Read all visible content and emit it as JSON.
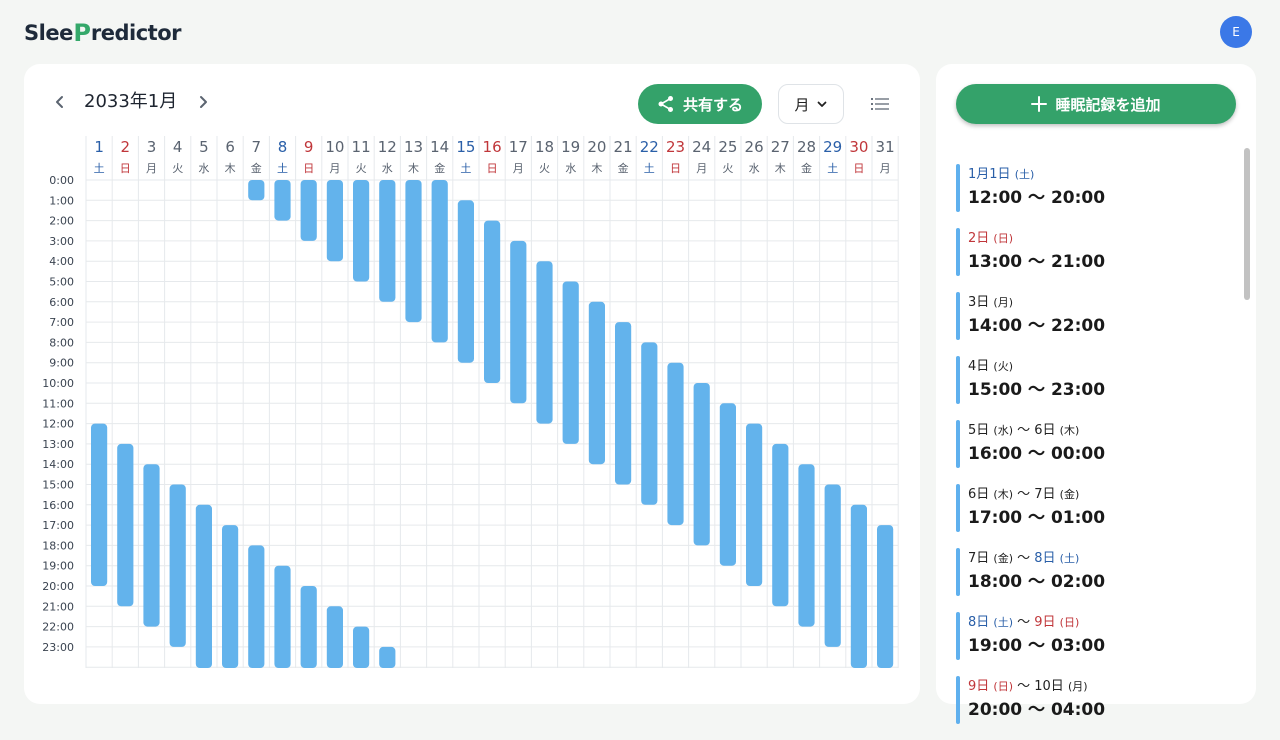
{
  "app": {
    "logo_before": "Slee",
    "logo_p": "P",
    "logo_after": "redictor",
    "avatar_letter": "E"
  },
  "calendar": {
    "month_title": "2033年1月",
    "share_label": "共有する",
    "period_value": "月",
    "icons": {
      "prev": "chevron-left-icon",
      "next": "chevron-right-icon",
      "share": "share-icon",
      "dropdown": "chevron-down-icon",
      "list": "list-icon"
    }
  },
  "colors": {
    "accent": "#34a26a",
    "bar": "#63b3ec",
    "saturday": "#2a5fa8",
    "sunday": "#c0363a",
    "weekday": "#5a6370",
    "grid": "#e6e9ec"
  },
  "chart_data": {
    "type": "bar",
    "days": [
      {
        "day": "1",
        "weekday": "土",
        "kind": "sat"
      },
      {
        "day": "2",
        "weekday": "日",
        "kind": "sun"
      },
      {
        "day": "3",
        "weekday": "月",
        "kind": "wd"
      },
      {
        "day": "4",
        "weekday": "火",
        "kind": "wd"
      },
      {
        "day": "5",
        "weekday": "水",
        "kind": "wd"
      },
      {
        "day": "6",
        "weekday": "木",
        "kind": "wd"
      },
      {
        "day": "7",
        "weekday": "金",
        "kind": "wd"
      },
      {
        "day": "8",
        "weekday": "土",
        "kind": "sat"
      },
      {
        "day": "9",
        "weekday": "日",
        "kind": "sun"
      },
      {
        "day": "10",
        "weekday": "月",
        "kind": "wd"
      },
      {
        "day": "11",
        "weekday": "火",
        "kind": "wd"
      },
      {
        "day": "12",
        "weekday": "水",
        "kind": "wd"
      },
      {
        "day": "13",
        "weekday": "木",
        "kind": "wd"
      },
      {
        "day": "14",
        "weekday": "金",
        "kind": "wd"
      },
      {
        "day": "15",
        "weekday": "土",
        "kind": "sat"
      },
      {
        "day": "16",
        "weekday": "日",
        "kind": "sun"
      },
      {
        "day": "17",
        "weekday": "月",
        "kind": "wd"
      },
      {
        "day": "18",
        "weekday": "火",
        "kind": "wd"
      },
      {
        "day": "19",
        "weekday": "水",
        "kind": "wd"
      },
      {
        "day": "20",
        "weekday": "木",
        "kind": "wd"
      },
      {
        "day": "21",
        "weekday": "金",
        "kind": "wd"
      },
      {
        "day": "22",
        "weekday": "土",
        "kind": "sat"
      },
      {
        "day": "23",
        "weekday": "日",
        "kind": "sun"
      },
      {
        "day": "24",
        "weekday": "月",
        "kind": "wd"
      },
      {
        "day": "25",
        "weekday": "火",
        "kind": "wd"
      },
      {
        "day": "26",
        "weekday": "水",
        "kind": "wd"
      },
      {
        "day": "27",
        "weekday": "木",
        "kind": "wd"
      },
      {
        "day": "28",
        "weekday": "金",
        "kind": "wd"
      },
      {
        "day": "29",
        "weekday": "土",
        "kind": "sat"
      },
      {
        "day": "30",
        "weekday": "日",
        "kind": "sun"
      },
      {
        "day": "31",
        "weekday": "月",
        "kind": "wd"
      }
    ],
    "hours": [
      "0:00",
      "1:00",
      "2:00",
      "3:00",
      "4:00",
      "5:00",
      "6:00",
      "7:00",
      "8:00",
      "9:00",
      "10:00",
      "11:00",
      "12:00",
      "13:00",
      "14:00",
      "15:00",
      "16:00",
      "17:00",
      "18:00",
      "19:00",
      "20:00",
      "21:00",
      "22:00",
      "23:00"
    ],
    "ylim": [
      0,
      24
    ],
    "sleep_segments": [
      {
        "day": 1,
        "start": 12,
        "end": 20
      },
      {
        "day": 2,
        "start": 13,
        "end": 21
      },
      {
        "day": 3,
        "start": 14,
        "end": 22
      },
      {
        "day": 4,
        "start": 15,
        "end": 23
      },
      {
        "day": 5,
        "start": 16,
        "end": 24
      },
      {
        "day": 6,
        "start": 17,
        "end": 24
      },
      {
        "day": 7,
        "start": 0,
        "end": 1
      },
      {
        "day": 7,
        "start": 18,
        "end": 24
      },
      {
        "day": 8,
        "start": 0,
        "end": 2
      },
      {
        "day": 8,
        "start": 19,
        "end": 24
      },
      {
        "day": 9,
        "start": 0,
        "end": 3
      },
      {
        "day": 9,
        "start": 20,
        "end": 24
      },
      {
        "day": 10,
        "start": 0,
        "end": 4
      },
      {
        "day": 10,
        "start": 21,
        "end": 24
      },
      {
        "day": 11,
        "start": 0,
        "end": 5
      },
      {
        "day": 11,
        "start": 22,
        "end": 24
      },
      {
        "day": 12,
        "start": 0,
        "end": 6
      },
      {
        "day": 12,
        "start": 23,
        "end": 24
      },
      {
        "day": 13,
        "start": 0,
        "end": 7
      },
      {
        "day": 14,
        "start": 0,
        "end": 8
      },
      {
        "day": 15,
        "start": 1,
        "end": 9
      },
      {
        "day": 16,
        "start": 2,
        "end": 10
      },
      {
        "day": 17,
        "start": 3,
        "end": 11
      },
      {
        "day": 18,
        "start": 4,
        "end": 12
      },
      {
        "day": 19,
        "start": 5,
        "end": 13
      },
      {
        "day": 20,
        "start": 6,
        "end": 14
      },
      {
        "day": 21,
        "start": 7,
        "end": 15
      },
      {
        "day": 22,
        "start": 8,
        "end": 16
      },
      {
        "day": 23,
        "start": 9,
        "end": 17
      },
      {
        "day": 24,
        "start": 10,
        "end": 18
      },
      {
        "day": 25,
        "start": 11,
        "end": 19
      },
      {
        "day": 26,
        "start": 12,
        "end": 20
      },
      {
        "day": 27,
        "start": 13,
        "end": 21
      },
      {
        "day": 28,
        "start": 14,
        "end": 22
      },
      {
        "day": 29,
        "start": 15,
        "end": 23
      },
      {
        "day": 30,
        "start": 16,
        "end": 24
      },
      {
        "day": 31,
        "start": 17,
        "end": 24
      }
    ]
  },
  "sidebar": {
    "add_label": "睡眠記録を追加",
    "add_icon": "plus-icon",
    "records": [
      {
        "parts": [
          {
            "text": "1月1日 ",
            "cls": "sat"
          },
          {
            "text": "(土)",
            "cls": "sat wd"
          }
        ],
        "time": "12:00 〜 20:00"
      },
      {
        "parts": [
          {
            "text": "2日 ",
            "cls": "sun"
          },
          {
            "text": "(日)",
            "cls": "sun wd"
          }
        ],
        "time": "13:00 〜 21:00"
      },
      {
        "parts": [
          {
            "text": "3日 ",
            "cls": ""
          },
          {
            "text": "(月)",
            "cls": "wd"
          }
        ],
        "time": "14:00 〜 22:00"
      },
      {
        "parts": [
          {
            "text": "4日 ",
            "cls": ""
          },
          {
            "text": "(火)",
            "cls": "wd"
          }
        ],
        "time": "15:00 〜 23:00"
      },
      {
        "parts": [
          {
            "text": "5日 ",
            "cls": ""
          },
          {
            "text": "(水)",
            "cls": "wd"
          },
          {
            "text": " 〜 ",
            "cls": ""
          },
          {
            "text": "6日 ",
            "cls": ""
          },
          {
            "text": "(木)",
            "cls": "wd"
          }
        ],
        "time": "16:00 〜 00:00"
      },
      {
        "parts": [
          {
            "text": "6日 ",
            "cls": ""
          },
          {
            "text": "(木)",
            "cls": "wd"
          },
          {
            "text": " 〜 ",
            "cls": ""
          },
          {
            "text": "7日 ",
            "cls": ""
          },
          {
            "text": "(金)",
            "cls": "wd"
          }
        ],
        "time": "17:00 〜 01:00"
      },
      {
        "parts": [
          {
            "text": "7日 ",
            "cls": ""
          },
          {
            "text": "(金)",
            "cls": "wd"
          },
          {
            "text": " 〜 ",
            "cls": ""
          },
          {
            "text": "8日 ",
            "cls": "sat"
          },
          {
            "text": "(土)",
            "cls": "sat wd"
          }
        ],
        "time": "18:00 〜 02:00"
      },
      {
        "parts": [
          {
            "text": "8日 ",
            "cls": "sat"
          },
          {
            "text": "(土)",
            "cls": "sat wd"
          },
          {
            "text": " 〜 ",
            "cls": ""
          },
          {
            "text": "9日 ",
            "cls": "sun"
          },
          {
            "text": "(日)",
            "cls": "sun wd"
          }
        ],
        "time": "19:00 〜 03:00"
      },
      {
        "parts": [
          {
            "text": "9日 ",
            "cls": "sun"
          },
          {
            "text": "(日)",
            "cls": "sun wd"
          },
          {
            "text": " 〜 ",
            "cls": ""
          },
          {
            "text": "10日 ",
            "cls": ""
          },
          {
            "text": "(月)",
            "cls": "wd"
          }
        ],
        "time": "20:00 〜 04:00"
      }
    ]
  }
}
